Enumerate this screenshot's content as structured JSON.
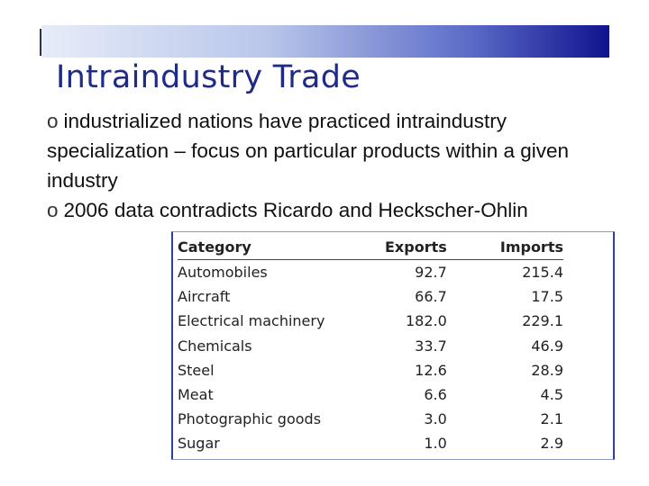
{
  "slide": {
    "title": "Intraindustry Trade",
    "bullets": [
      {
        "marker": "o",
        "text": "industrialized nations have practiced intraindustry specialization – focus on particular products within a given industry"
      },
      {
        "marker": "o",
        "text": "2006 data contradicts Ricardo and Heckscher-Ohlin"
      }
    ],
    "table": {
      "columns": [
        "Category",
        "Exports",
        "Imports"
      ],
      "rows": [
        [
          "Automobiles",
          "92.7",
          "215.4"
        ],
        [
          "Aircraft",
          "66.7",
          "17.5"
        ],
        [
          "Electrical machinery",
          "182.0",
          "229.1"
        ],
        [
          "Chemicals",
          "33.7",
          "46.9"
        ],
        [
          "Steel",
          "12.6",
          "28.9"
        ],
        [
          "Meat",
          "6.6",
          "4.5"
        ],
        [
          "Photographic goods",
          "3.0",
          "2.1"
        ],
        [
          "Sugar",
          "1.0",
          "2.9"
        ]
      ]
    }
  }
}
